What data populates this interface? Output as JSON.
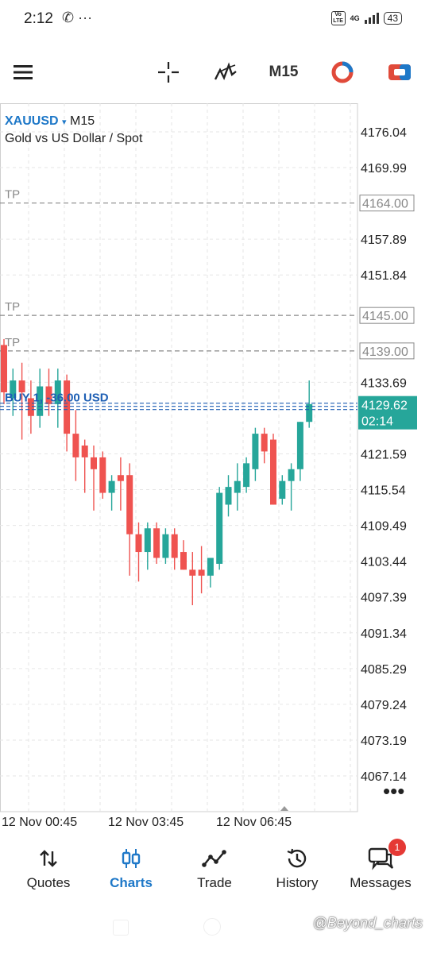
{
  "status": {
    "time": "2:12",
    "left_icons": "✆ ···",
    "volte": "Vo LTE",
    "net": "4G",
    "battery": "43"
  },
  "toolbar": {
    "menu_icon": "hamburger-menu-icon",
    "crosshair_icon": "crosshair-icon",
    "indicator_icon": "indicators-icon",
    "timeframe": "M15",
    "chart_type_icon": "pie-toggle-icon",
    "trade_icon": "one-click-trade-icon"
  },
  "chart": {
    "symbol": "XAUUSD",
    "symbol_arrow": "▾",
    "timeframe": "M15",
    "description": "Gold vs US Dollar / Spot",
    "colors": {
      "bull": "#26a69a",
      "bear": "#ef5350",
      "order": "#1e5fb4",
      "price_bg": "#26a69a"
    }
  },
  "chart_data": {
    "type": "candlestick",
    "price_ticks": [
      "4176.04",
      "4169.99",
      "4157.89",
      "4151.84",
      "4133.69",
      "4121.59",
      "4115.54",
      "4109.49",
      "4103.44",
      "4097.39",
      "4091.34",
      "4085.29",
      "4079.24",
      "4073.19",
      "4067.14"
    ],
    "time_labels": [
      "12 Nov 00:45",
      "12 Nov 03:45",
      "12 Nov 06:45"
    ],
    "tp_lines": [
      {
        "label": "TP",
        "price": "4164.00"
      },
      {
        "label": "TP",
        "price": "4145.00"
      },
      {
        "label": "TP",
        "price": "4139.00"
      }
    ],
    "order_line": {
      "label": "BUY 1, -36.00 USD"
    },
    "current_price": "4129.62",
    "countdown": "02:14",
    "candles": [
      {
        "o": 4140,
        "h": 4141,
        "l": 4130,
        "c": 4132
      },
      {
        "o": 4131,
        "h": 4136,
        "l": 4128,
        "c": 4134
      },
      {
        "o": 4134,
        "h": 4137,
        "l": 4124,
        "c": 4132
      },
      {
        "o": 4131,
        "h": 4134,
        "l": 4125,
        "c": 4128
      },
      {
        "o": 4128,
        "h": 4136,
        "l": 4126,
        "c": 4133
      },
      {
        "o": 4133,
        "h": 4136,
        "l": 4128,
        "c": 4130
      },
      {
        "o": 4130,
        "h": 4136,
        "l": 4126,
        "c": 4134
      },
      {
        "o": 4134,
        "h": 4135,
        "l": 4122,
        "c": 4125
      },
      {
        "o": 4125,
        "h": 4129,
        "l": 4117,
        "c": 4121
      },
      {
        "o": 4123,
        "h": 4124,
        "l": 4115,
        "c": 4121
      },
      {
        "o": 4121,
        "h": 4123,
        "l": 4112,
        "c": 4119
      },
      {
        "o": 4121,
        "h": 4122,
        "l": 4114,
        "c": 4115
      },
      {
        "o": 4115,
        "h": 4118,
        "l": 4112,
        "c": 4117
      },
      {
        "o": 4118,
        "h": 4121,
        "l": 4112,
        "c": 4117
      },
      {
        "o": 4118,
        "h": 4120,
        "l": 4101,
        "c": 4108
      },
      {
        "o": 4108,
        "h": 4110,
        "l": 4100,
        "c": 4105
      },
      {
        "o": 4105,
        "h": 4110,
        "l": 4102,
        "c": 4109
      },
      {
        "o": 4109,
        "h": 4110,
        "l": 4103,
        "c": 4104
      },
      {
        "o": 4104,
        "h": 4109,
        "l": 4103,
        "c": 4108
      },
      {
        "o": 4108,
        "h": 4109,
        "l": 4102,
        "c": 4104
      },
      {
        "o": 4105,
        "h": 4107,
        "l": 4102,
        "c": 4102
      },
      {
        "o": 4102,
        "h": 4105,
        "l": 4096,
        "c": 4101
      },
      {
        "o": 4102,
        "h": 4106,
        "l": 4098,
        "c": 4101
      },
      {
        "o": 4101,
        "h": 4104,
        "l": 4099,
        "c": 4104
      },
      {
        "o": 4103,
        "h": 4116,
        "l": 4102,
        "c": 4115
      },
      {
        "o": 4113,
        "h": 4118,
        "l": 4111,
        "c": 4116
      },
      {
        "o": 4115,
        "h": 4120,
        "l": 4112,
        "c": 4117
      },
      {
        "o": 4116,
        "h": 4121,
        "l": 4115,
        "c": 4120
      },
      {
        "o": 4119,
        "h": 4126,
        "l": 4117,
        "c": 4125
      },
      {
        "o": 4125,
        "h": 4126,
        "l": 4120,
        "c": 4122
      },
      {
        "o": 4124,
        "h": 4125,
        "l": 4113,
        "c": 4113
      },
      {
        "o": 4114,
        "h": 4118,
        "l": 4113,
        "c": 4117
      },
      {
        "o": 4117,
        "h": 4120,
        "l": 4112,
        "c": 4119
      },
      {
        "o": 4119,
        "h": 4127,
        "l": 4117,
        "c": 4127
      },
      {
        "o": 4127,
        "h": 4134,
        "l": 4126,
        "c": 4130
      }
    ]
  },
  "nav": [
    {
      "label": "Quotes",
      "icon": "quotes-arrows-icon",
      "active": false
    },
    {
      "label": "Charts",
      "icon": "charts-candles-icon",
      "active": true
    },
    {
      "label": "Trade",
      "icon": "trade-line-icon",
      "active": false
    },
    {
      "label": "History",
      "icon": "history-clock-icon",
      "active": false
    },
    {
      "label": "Messages",
      "icon": "messages-icon",
      "active": false,
      "badge": "1"
    }
  ],
  "watermark": "@Beyond_charts"
}
